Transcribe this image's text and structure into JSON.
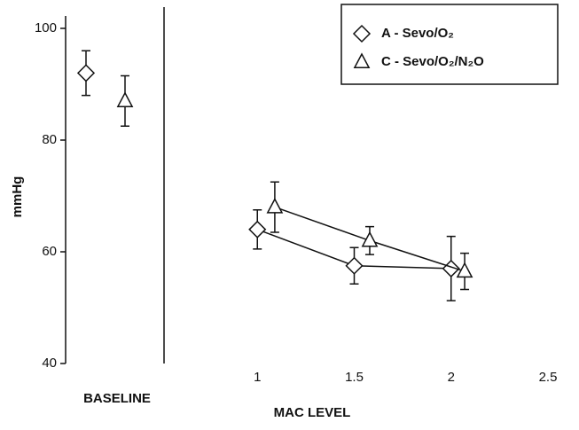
{
  "chart_data": {
    "type": "scatter",
    "ylabel": "mmHg",
    "xlabel": "MAC LEVEL",
    "baseline_label": "BASELINE",
    "ylim": [
      40,
      100
    ],
    "yticks": [
      40,
      60,
      80,
      100
    ],
    "xlim": [
      0.5,
      2.5
    ],
    "xticks": [
      1,
      1.5,
      2,
      2.5
    ],
    "legend": "upper right",
    "series": [
      {
        "name": "A - Sevo/O₂",
        "color": "#111111",
        "marker": "diamond",
        "baseline": 92,
        "baseline_error": 4,
        "x": [
          1,
          1.5,
          2
        ],
        "values": [
          64,
          57.5,
          57
        ],
        "errors": [
          3.5,
          3.25,
          5.75
        ]
      },
      {
        "name": "C - Sevo/O₂/N₂O",
        "color": "#111111",
        "marker": "triangle",
        "baseline": 87,
        "baseline_error": 4.5,
        "x": [
          1.09,
          1.58,
          2.07
        ],
        "values": [
          68,
          62,
          56.5
        ],
        "errors": [
          4.5,
          2.5,
          3.25
        ]
      }
    ]
  }
}
